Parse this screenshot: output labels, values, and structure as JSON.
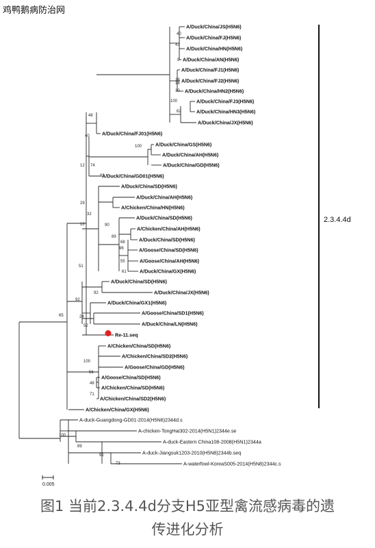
{
  "watermark": "鸡鸭鹅病防治网",
  "clade_label": "2.3.4.4d",
  "scale_label": "0.005",
  "caption_line1": "图1 当前2.3.4.4d分支H5亚型禽流感病毒的遗",
  "caption_line2": "传进化分析",
  "highlight_color": "#e02020",
  "taxa": [
    "A/Duck/China/JS(H5N6)",
    "A/Duck/China/FJ(H5N6)",
    "A/Duck/China/HN(H5N6)",
    "A/Duck/China/AN(H5N6)",
    "A/Duck/China/FJ1(H5N6)",
    "A/Duck/China/FJ2(H5N6)",
    "A/Duck/China/HN2(H5N6)",
    "A/Duck/China/FJ3(H5N6)",
    "A/Duck/China/HN3(H5N6)",
    "A/Duck/China/JX(H5N6)",
    "A/Duck/China/FJ01(H5N6)",
    "A/Duck/China/GS(H5N6)",
    "A/Duck/China/AH(H5N6)",
    "A/Duck/China/GD(H5N6)",
    "A/Duck/China/GD01(H5N6)",
    "A/Duck/China/SD(H5N6)",
    "A/Duck/China/AH(H5N6)",
    "A/Chicken/China/HN(H5N6)",
    "A/Duck/China/SD(H5N6)",
    "A/Chicken/China/AH(H5N6)",
    "A/Duck/China/SD(H5N6)",
    "A/Goose/China/SD(H5N6)",
    "A/Goose/China/AH(H5N6)",
    "A/Duck/China/GX(H5N6)",
    "A/Duck/China/SD(H5N6)",
    "A/Duck/China/JX(H5N6)",
    "A/Duck/China/GX1(H5N6)",
    "A/Goose/China/SD1(H5N6)",
    "A/Duck/China/LN(H5N6)",
    "Re-11.seq",
    "A/Chicken/China/SD(H5N6)",
    "A/Chicken/China/SD2(H5N6)",
    "A/Goose/China/GD(H5N6)",
    "A/Goose/China/SD(H5N6)",
    "A/Chicken/China/SD(H5N6)",
    "A/Chicken/China/SD2(H5N6)",
    "A/Chicken/China/GX(H5N6)",
    "A-duck-Guangdong-GD01-2014(H5N6)2344d.s",
    "A-chicken-TongHai302-2014(H5N1)2344e.se",
    "A-duck-Eastern China108-2008(H5N1)2344a",
    "A-duck-Jiangsuk1203-2010(H5N8)2344b.seq",
    "A-waterfowl-KoreaS005-2014(H5N8)2344c.s"
  ],
  "support_values": [
    "40",
    "47",
    "9",
    "16",
    "16",
    "10",
    "100",
    "62",
    "48",
    "40",
    "100",
    "74",
    "83",
    "12",
    "29",
    "32",
    "10",
    "90",
    "89",
    "68",
    "96",
    "55",
    "61",
    "51",
    "92",
    "92",
    "24",
    "52",
    "65",
    "100",
    "56",
    "48",
    "71",
    "100",
    "89",
    "91",
    "73"
  ]
}
